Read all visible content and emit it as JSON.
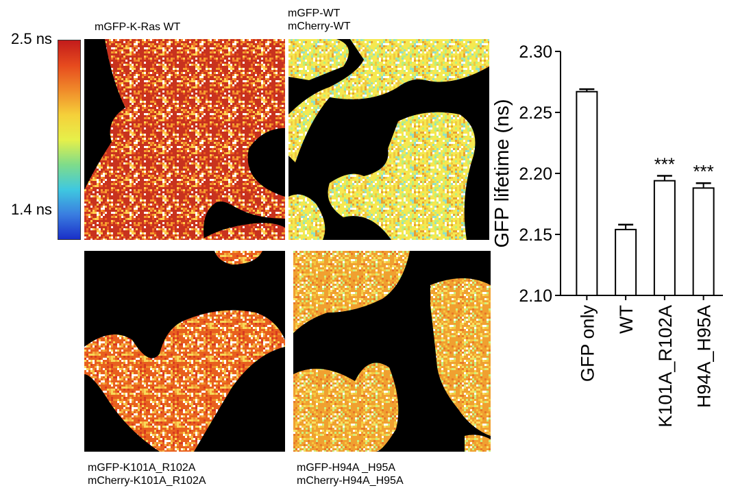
{
  "colorbar": {
    "max_label": "2.5 ns",
    "min_label": "1.4 ns",
    "stops": [
      "#c21b1b",
      "#e64a1e",
      "#f08a2a",
      "#f5d03a",
      "#e6f04a",
      "#7fdc8a",
      "#3fc8e0",
      "#3a7ee0",
      "#1a2fc8"
    ]
  },
  "panels": [
    {
      "id": "kras",
      "label_lines": [
        "mGFP-K-Ras WT"
      ],
      "palette": [
        "#c8321e",
        "#e8581e",
        "#f0782a",
        "#f5a030",
        "#ffd050",
        "#ffffff"
      ]
    },
    {
      "id": "wt",
      "label_lines": [
        "mGFP-WT",
        "mCherry-WT"
      ],
      "palette": [
        "#f5e850",
        "#f0c840",
        "#e8a030",
        "#b8f080",
        "#8fe0c8",
        "#ffffff"
      ]
    },
    {
      "id": "k101",
      "label_lines": [
        "mGFP-K101A_R102A",
        "mCherry-K101A_R102A"
      ],
      "palette": [
        "#e8601e",
        "#f08a2a",
        "#f5b040",
        "#f8d858",
        "#d83a20",
        "#ffffff"
      ]
    },
    {
      "id": "h94",
      "label_lines": [
        "mGFP-H94A _H95A",
        "mCherry-H94A_H95A"
      ],
      "palette": [
        "#f0a030",
        "#f5c840",
        "#f8e060",
        "#e87828",
        "#c8f080",
        "#ffffff"
      ]
    }
  ],
  "chart_data": {
    "type": "bar",
    "categories": [
      "GFP only",
      "WT",
      "K101A_R102A",
      "H94A_H95A"
    ],
    "values": [
      2.267,
      2.154,
      2.194,
      2.188
    ],
    "errors": [
      0.002,
      0.004,
      0.004,
      0.004
    ],
    "annotations": [
      "",
      "",
      "***",
      "***"
    ],
    "ylabel": "GFP lifetime (ns)",
    "xlabel": "",
    "ylim": [
      2.1,
      2.3
    ],
    "yticks": [
      "2.10",
      "2.15",
      "2.20",
      "2.25",
      "2.30"
    ],
    "bar_fill": "#ffffff",
    "bar_stroke": "#000000"
  }
}
